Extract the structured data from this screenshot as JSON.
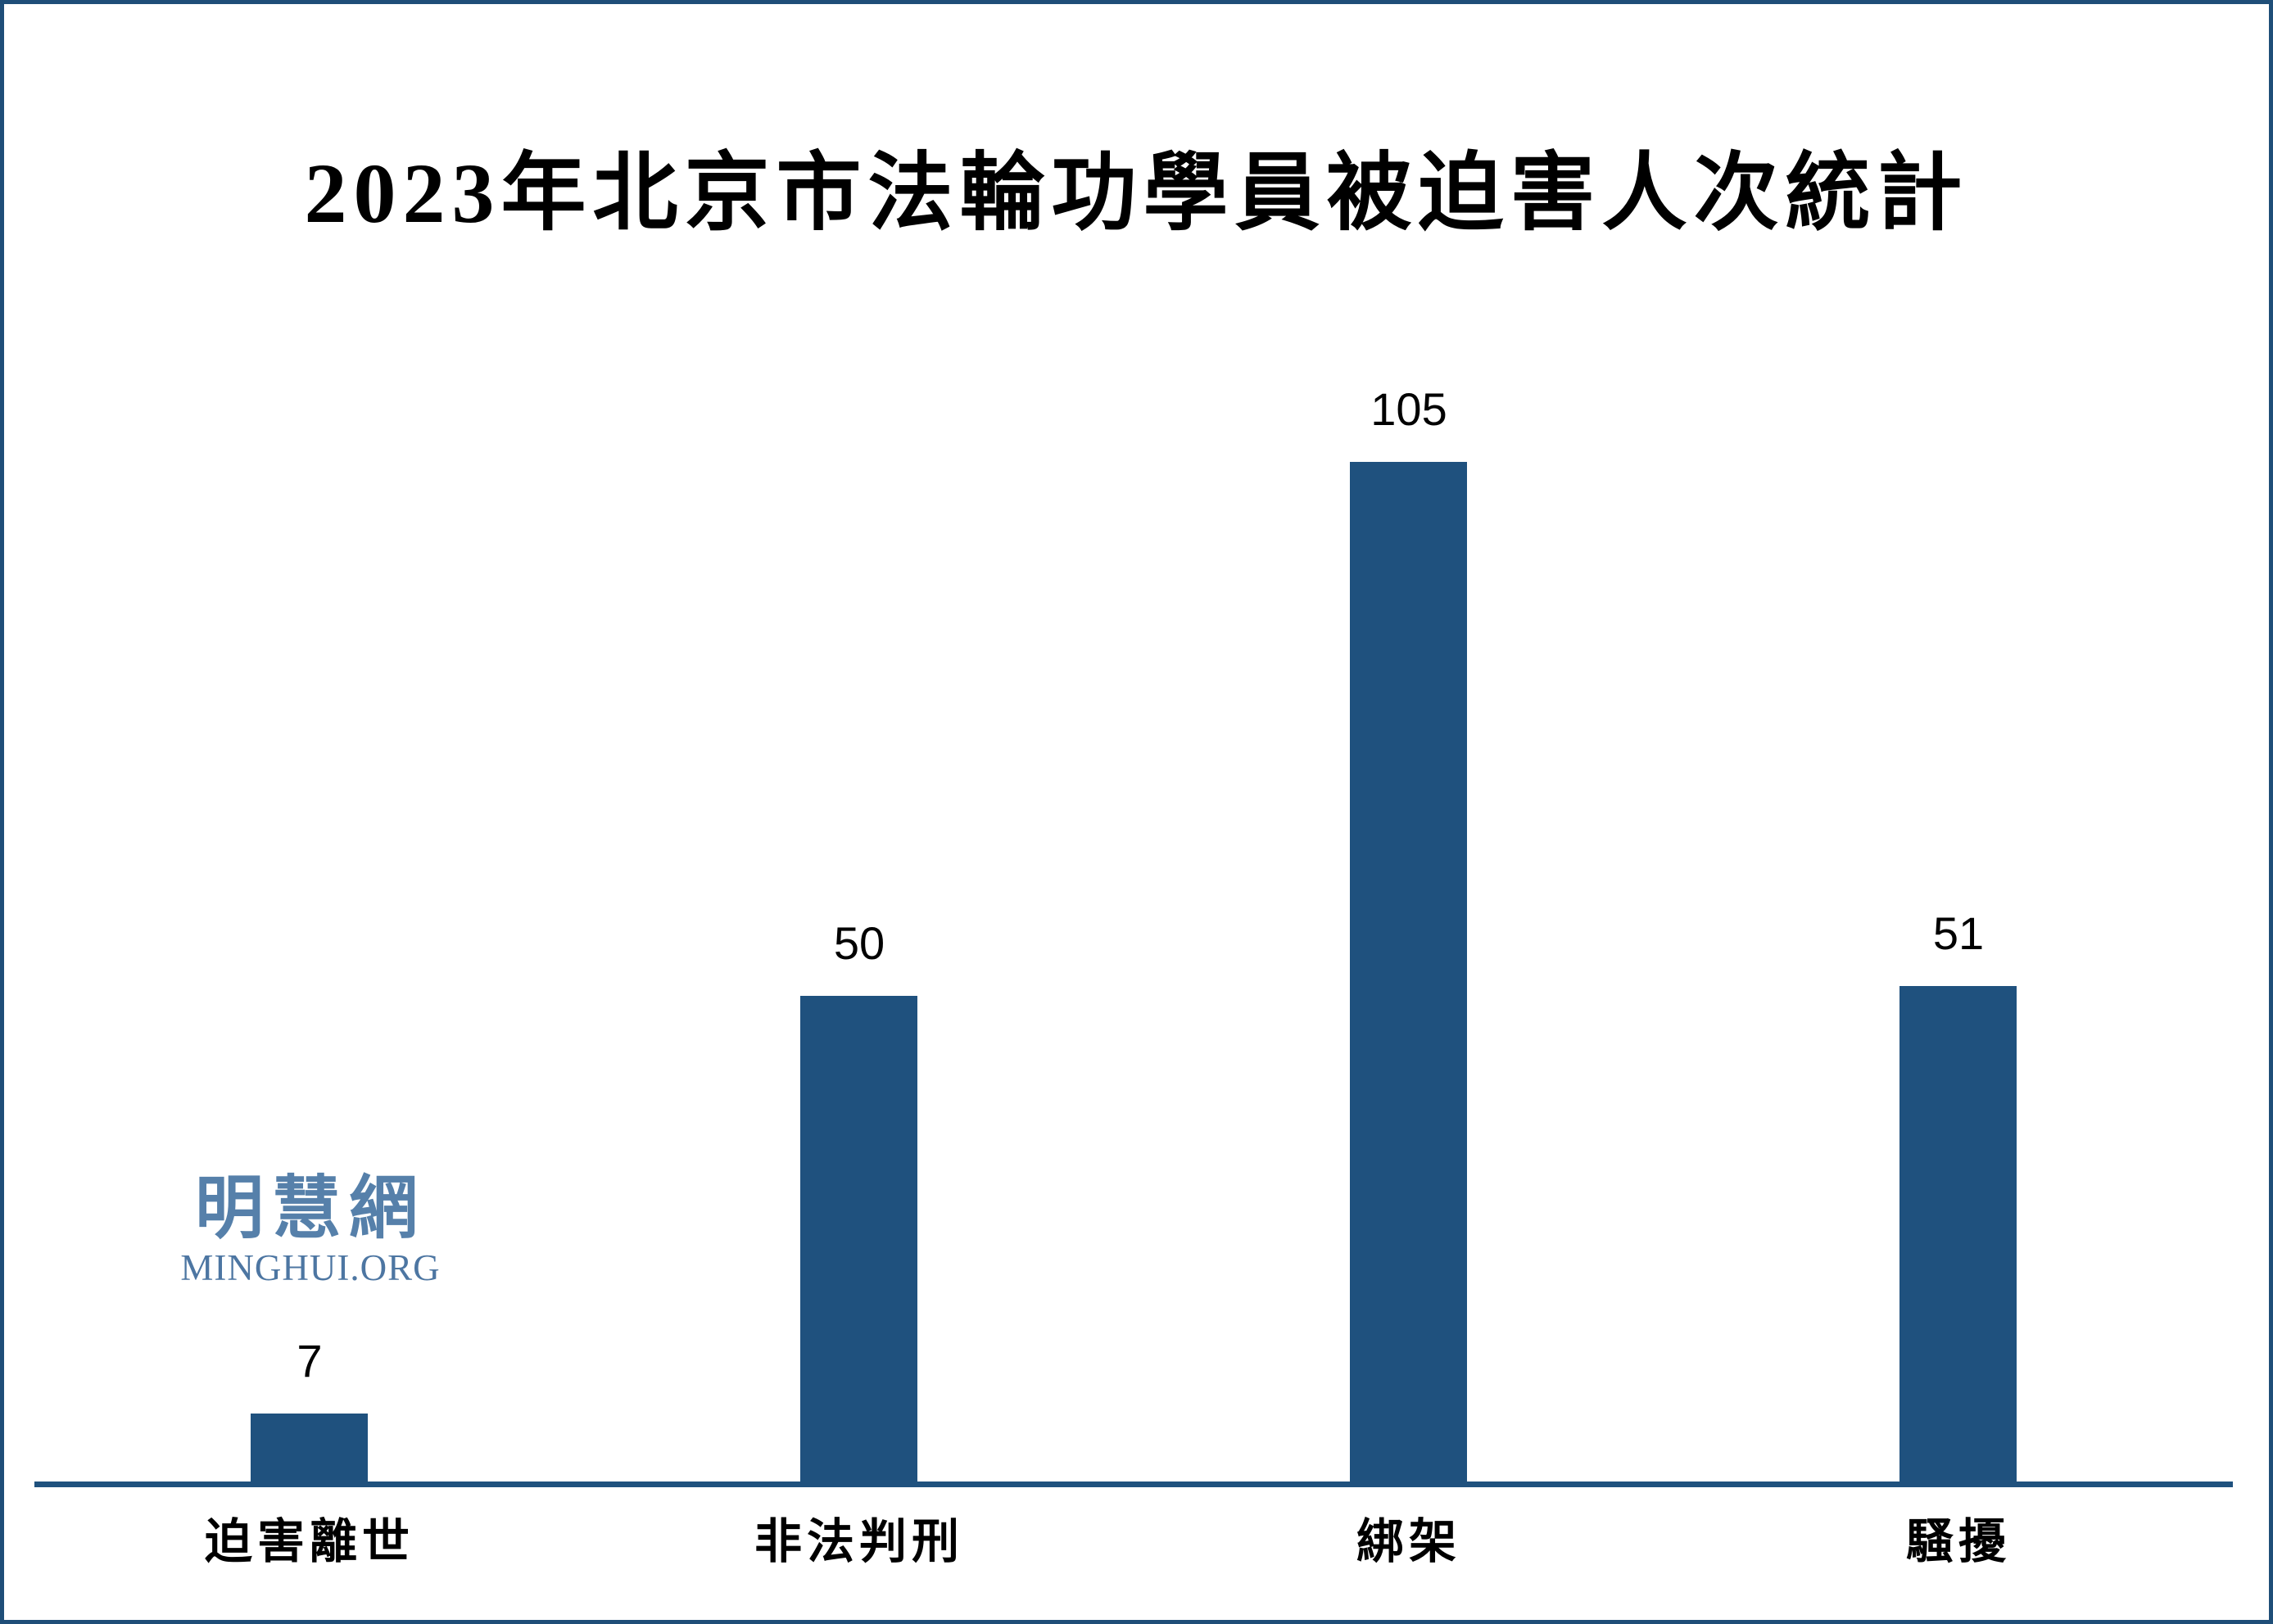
{
  "page": {
    "background_color": "#ffffff",
    "border_color": "#1f4e78"
  },
  "chart_data": {
    "type": "bar",
    "title": "2023年北京市法輪功學員被迫害人次統計",
    "categories": [
      "迫害離世",
      "非法判刑",
      "綁架",
      "騷擾"
    ],
    "values": [
      7,
      50,
      105,
      51
    ],
    "data_labels": [
      "7",
      "50",
      "105",
      "51"
    ],
    "xlabel": "",
    "ylabel": "",
    "ylim": [
      0,
      105
    ],
    "grid": false,
    "legend": false,
    "bar_color": "#1f517e",
    "axis_color": "#1f517e",
    "title_color": "#000000",
    "label_color": "#000000"
  },
  "watermark": {
    "cjk": "明慧網",
    "latin": "MINGHUI.ORG",
    "cjk_color": "#5680aa",
    "latin_color": "#4d76a2"
  }
}
